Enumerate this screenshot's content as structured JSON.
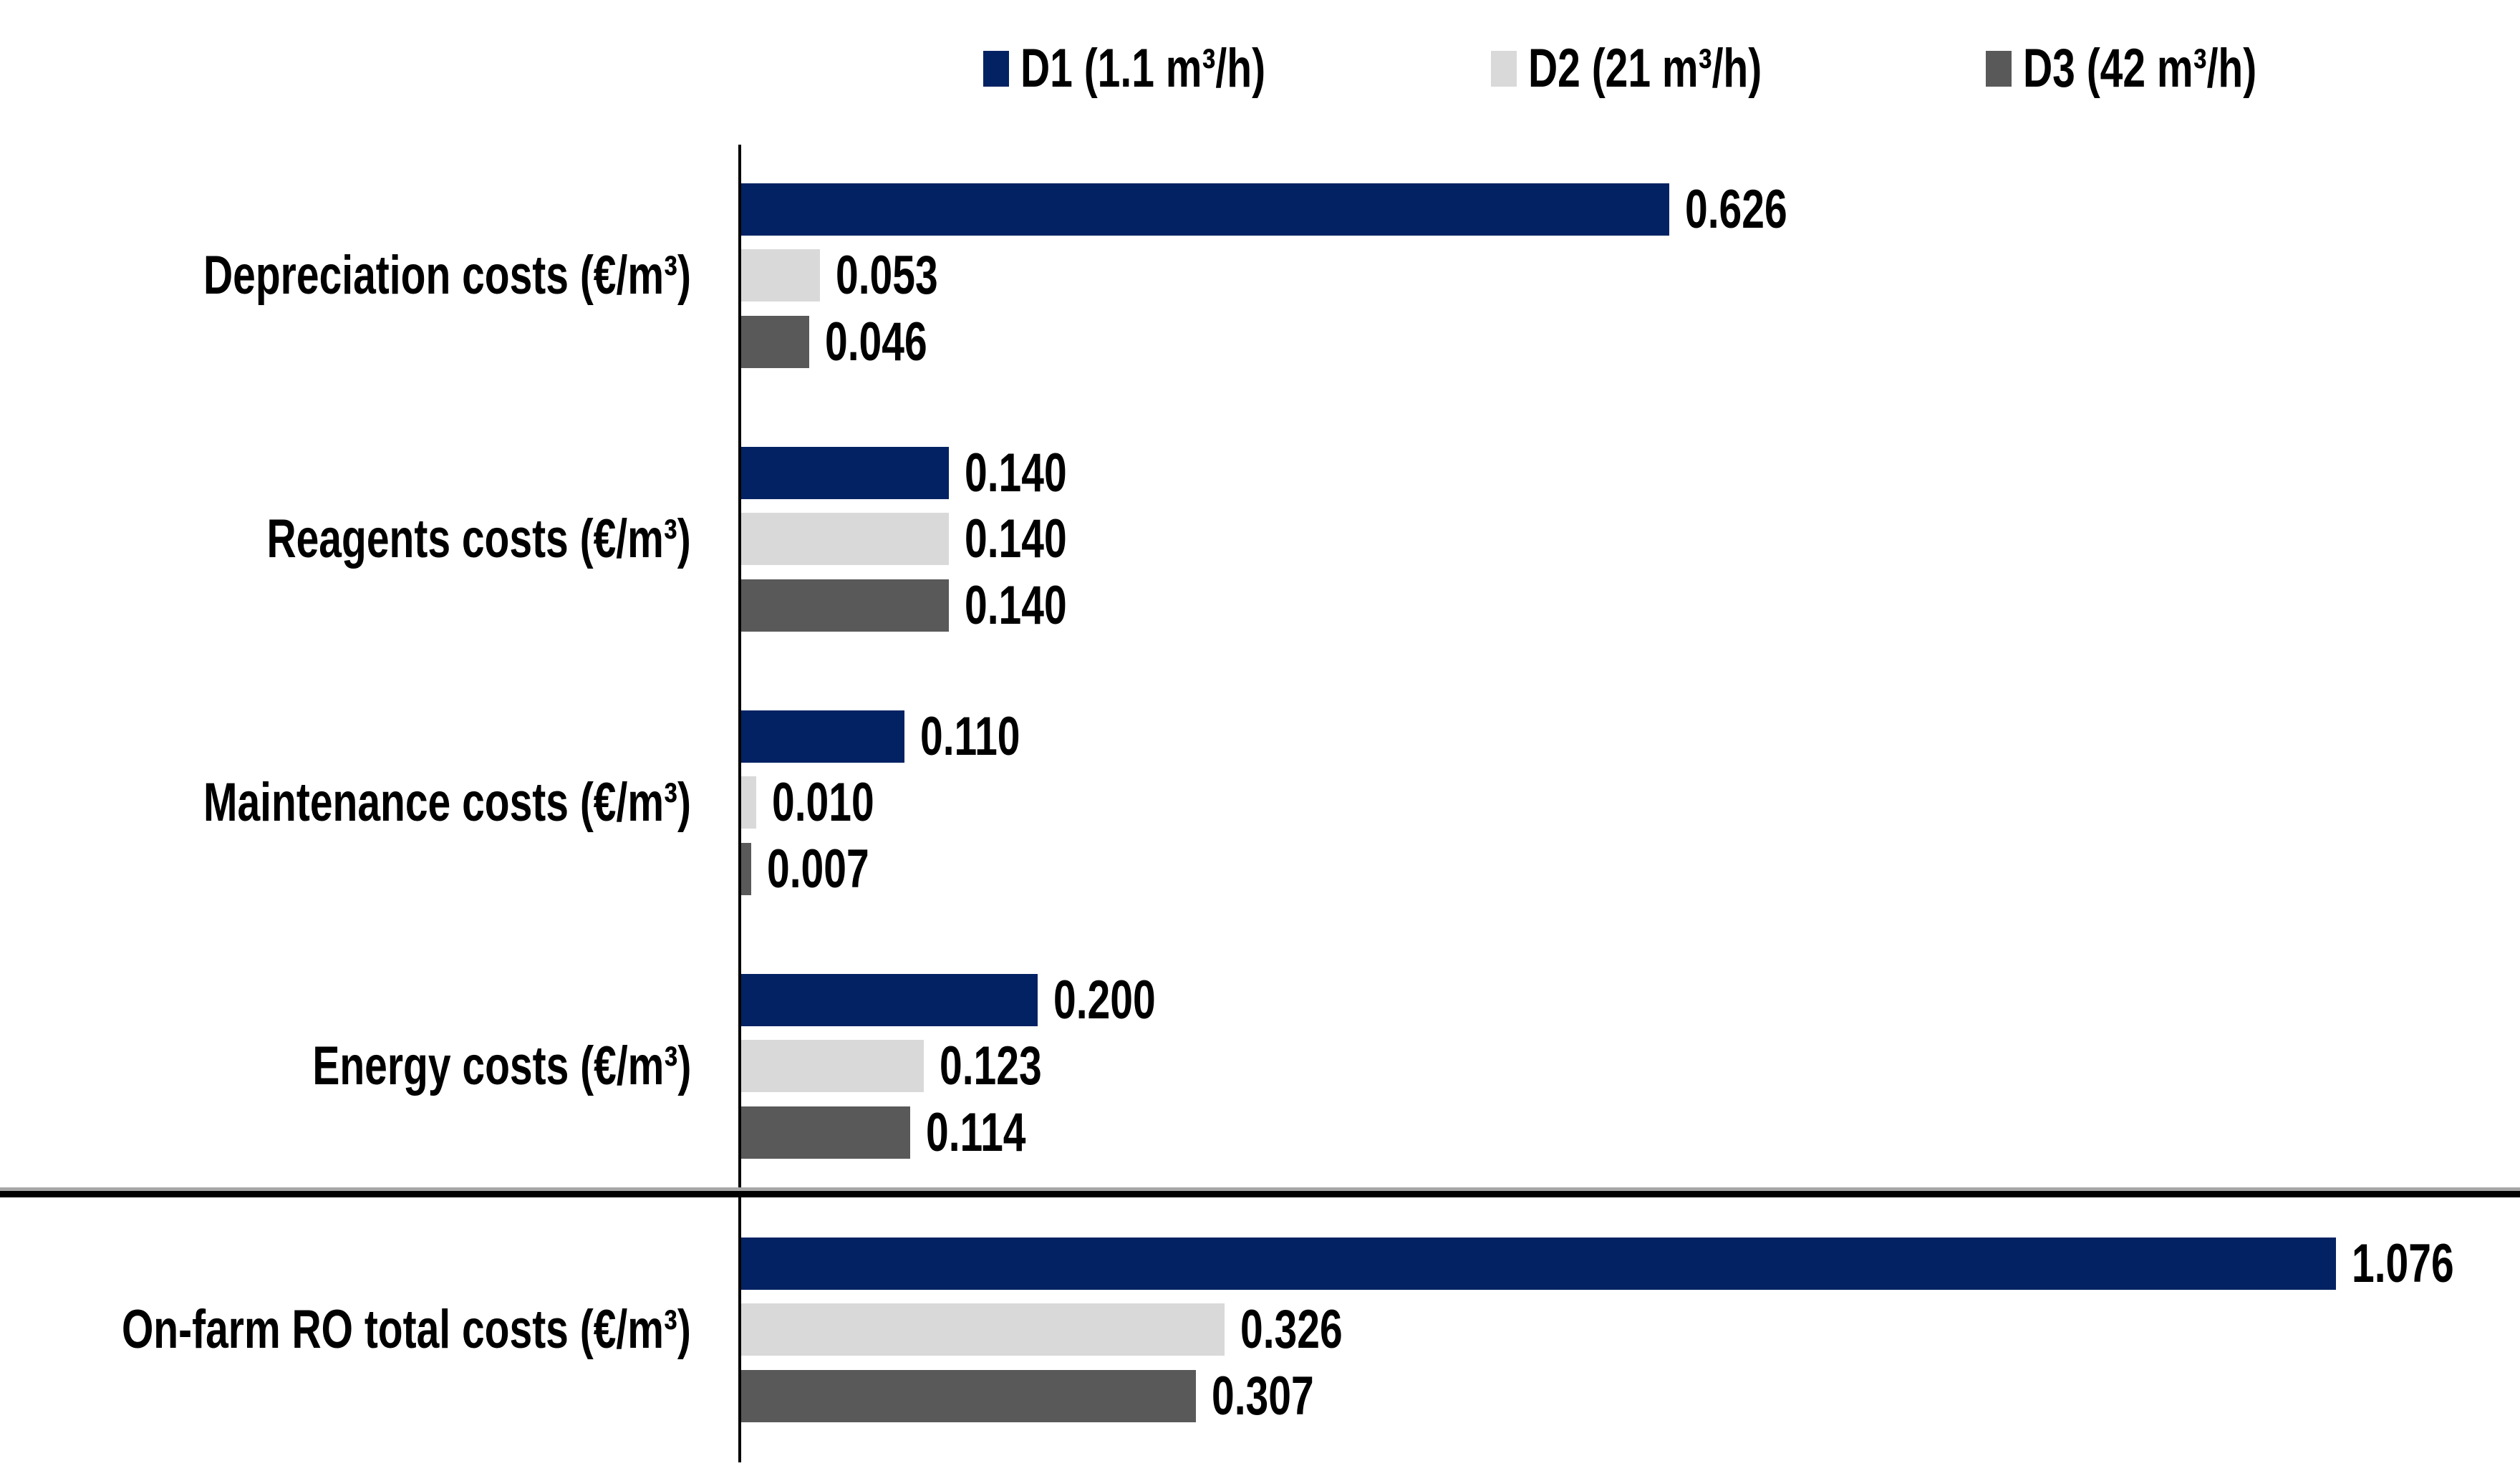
{
  "chart_data": {
    "type": "bar",
    "orientation": "horizontal",
    "title": "",
    "xlabel": "",
    "ylabel": "",
    "grid": false,
    "legend_position": "top",
    "xlim": [
      0,
      1.2
    ],
    "axis_color": "#000000",
    "separator_after_category": 3,
    "categories": [
      "Depreciation costs (€/m³)",
      "Reagents costs (€/m³)",
      "Maintenance costs (€/m³)",
      "Energy costs (€/m³)",
      "On-farm RO total costs (€/m³)"
    ],
    "series": [
      {
        "name": "D1 (1.1 m³/h)",
        "color": "#032263",
        "values": [
          0.626,
          0.14,
          0.11,
          0.2,
          1.076
        ],
        "labels": [
          "0.626",
          "0.140",
          "0.110",
          "0.200",
          "1.076"
        ]
      },
      {
        "name": "D2 (21 m³/h)",
        "color": "#d9d9d9",
        "values": [
          0.053,
          0.14,
          0.01,
          0.123,
          0.326
        ],
        "labels": [
          "0.053",
          "0.140",
          "0.010",
          "0.123",
          "0.326"
        ]
      },
      {
        "name": "D3 (42 m³/h)",
        "color": "#595959",
        "values": [
          0.046,
          0.14,
          0.007,
          0.114,
          0.307
        ],
        "labels": [
          "0.046",
          "0.140",
          "0.007",
          "0.114",
          "0.307"
        ]
      }
    ]
  }
}
